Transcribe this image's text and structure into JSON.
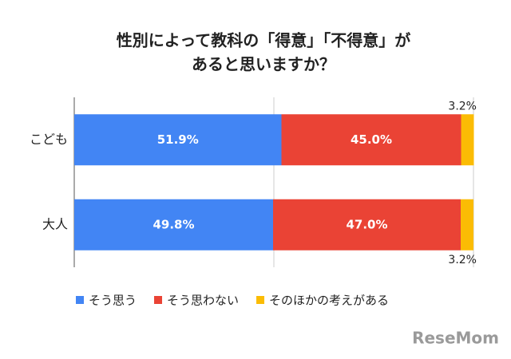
{
  "chart_data": {
    "type": "stacked-bar-horizontal",
    "title": [
      "性別によって教科の「得意」「不得意」が",
      "あると思いますか？"
    ],
    "categories": [
      "こども",
      "大人"
    ],
    "series": [
      {
        "name": "そう思う",
        "color": "#4285f4",
        "values": [
          51.9,
          49.8
        ],
        "value_labels": [
          "51.9%",
          "49.8%"
        ]
      },
      {
        "name": "そう思わない",
        "color": "#ea4335",
        "values": [
          45.0,
          47.0
        ],
        "value_labels": [
          "45.0%",
          "47.0%"
        ]
      },
      {
        "name": "そのほかの考えがある",
        "color": "#fbbc04",
        "values": [
          3.2,
          3.2
        ],
        "value_labels": [
          "3.2%",
          "3.2%"
        ]
      }
    ],
    "xlim": [
      0,
      100
    ],
    "xticks": [
      0,
      50,
      100
    ],
    "grid": true,
    "legend": "bottom",
    "watermark": "ReseMom"
  }
}
